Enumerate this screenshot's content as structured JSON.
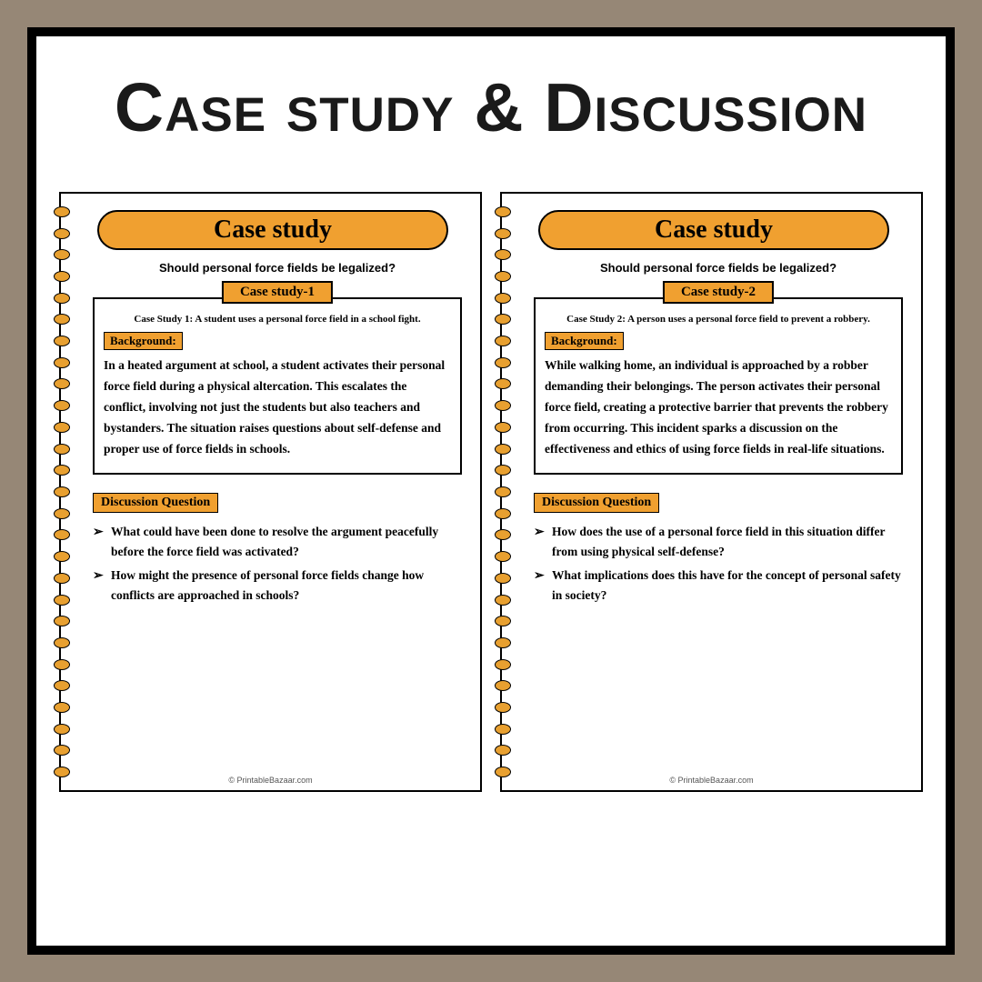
{
  "colors": {
    "background": "#968776",
    "frame_border": "#000000",
    "page_bg": "#ffffff",
    "accent": "#f0a030",
    "text": "#1a1a1a"
  },
  "main_title": "Case study & Discussion",
  "footer": "© PrintableBazaar.com",
  "pages": [
    {
      "header": "Case study",
      "subtitle": "Should personal force fields be legalized?",
      "case_tab": "Case study-1",
      "case_intro": "Case Study 1: A student uses a personal force field in a school fight.",
      "background_label": "Background:",
      "background_text": "In a heated argument at school, a student activates their personal force field during a physical altercation. This escalates the conflict, involving not just the students but also teachers and bystanders. The situation raises questions about self-defense and proper use of force fields in schools.",
      "discussion_label": "Discussion Question",
      "questions": [
        "What could have been done to resolve the argument peacefully before the force field was activated?",
        "How might the presence of personal force fields change how conflicts are approached in schools?"
      ]
    },
    {
      "header": "Case study",
      "subtitle": "Should personal force fields be legalized?",
      "case_tab": "Case study-2",
      "case_intro": "Case Study 2: A person uses a personal force field to prevent a robbery.",
      "background_label": "Background:",
      "background_text": "While walking home, an individual is approached by a robber demanding their belongings. The person activates their personal force field, creating a protective barrier that prevents the robbery from occurring. This incident sparks a discussion on the effectiveness and ethics of using force fields in real-life situations.",
      "discussion_label": "Discussion Question",
      "questions": [
        "How does the use of a personal force field in this situation differ from using physical self-defense?",
        "What implications does this have for the concept of personal safety in society?"
      ]
    }
  ]
}
